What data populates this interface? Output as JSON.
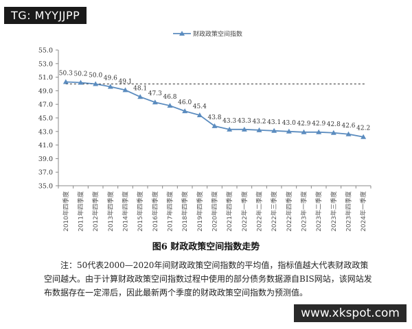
{
  "watermarks": {
    "top_left": "TG: MYYJJPP",
    "bottom_right": "www.xkspot.com"
  },
  "caption": "图6  财政政策空间指数走势",
  "note": "注：50代表2000—2020年间财政政策空间指数的平均值，指标值越大代表财政政策空间越大。由于计算财政政策空间指数过程中使用的部分债务数据源自BIS网站，该网站发布数据存在一定滞后，因此最新两个季度的财政政策空间指数为预测值。",
  "chart_data": {
    "type": "line",
    "title": "",
    "xlabel": "",
    "ylabel": "",
    "ylim": [
      35,
      55
    ],
    "yticks": [
      "35.0",
      "37.0",
      "39.0",
      "41.0",
      "43.0",
      "45.0",
      "47.0",
      "49.0",
      "51.0",
      "53.0",
      "55.0"
    ],
    "grid": false,
    "legend": "top-center",
    "categories": [
      "2010年四季度",
      "2011年四季度",
      "2012年四季度",
      "2013年四季度",
      "2014年四季度",
      "2015年四季度",
      "2016年四季度",
      "2017年四季度",
      "2018年四季度",
      "2019年四季度",
      "2020年四季度",
      "2021年四季度",
      "2022年一季度",
      "2022年二季度",
      "2022年三季度",
      "2022年四季度",
      "2023年一季度",
      "2023年二季度",
      "2023年三季度",
      "2023年四季度",
      "2024年一季度"
    ],
    "series": [
      {
        "name": "财政政策空间指数",
        "color": "#5b8cbf",
        "marker": "triangle",
        "values": [
          50.3,
          50.2,
          50.0,
          49.6,
          49.1,
          48.1,
          47.3,
          46.8,
          46.0,
          45.4,
          43.8,
          43.3,
          43.3,
          43.2,
          43.1,
          43.0,
          42.9,
          42.9,
          42.8,
          42.6,
          42.2
        ],
        "labels": [
          "50.3",
          "50.2",
          "50.0",
          "49.6",
          "49.1",
          "48.1",
          "47.3",
          "46.8",
          "46.0",
          "45.4",
          "43.8",
          "43.3",
          "43.3",
          "43.2",
          "43.1",
          "43.0",
          "42.9",
          "42.9",
          "42.8",
          "42.6",
          "42.2"
        ]
      }
    ],
    "reference_line": {
      "y": 50,
      "style": "dashed",
      "color": "#333333"
    }
  }
}
